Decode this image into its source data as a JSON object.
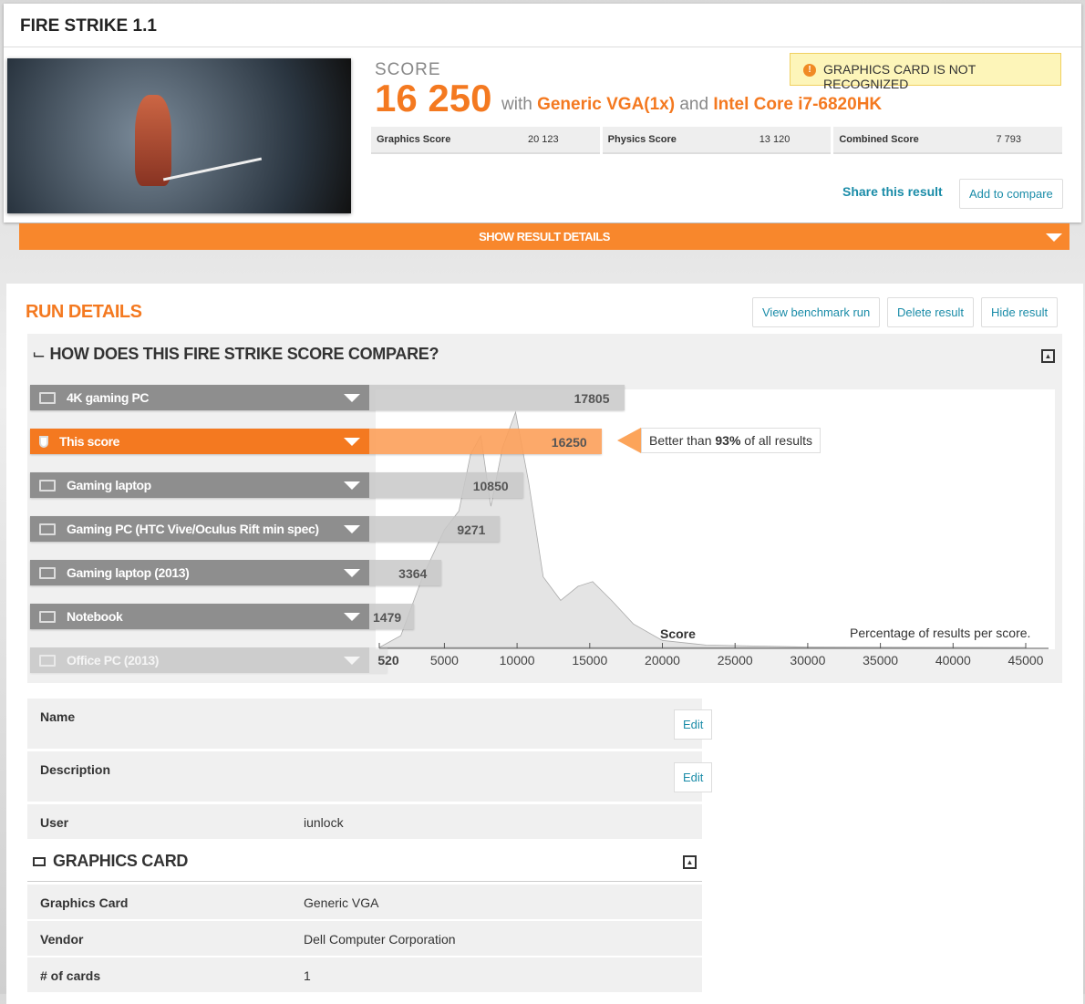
{
  "title": "FIRE STRIKE 1.1",
  "score": {
    "label": "SCORE",
    "value": "16 250",
    "with": "with",
    "gpu": "Generic VGA(1x)",
    "and": "and",
    "cpu": "Intel Core i7-6820HK"
  },
  "warning": "GRAPHICS CARD IS NOT RECOGNIZED",
  "subscores": [
    {
      "label": "Graphics Score",
      "value": "20 123"
    },
    {
      "label": "Physics Score",
      "value": "13 120"
    },
    {
      "label": "Combined Score",
      "value": "7 793"
    }
  ],
  "share": "Share this result",
  "add_compare": "Add to compare",
  "show_details": "SHOW RESULT DETAILS",
  "run_details": {
    "title": "RUN DETAILS",
    "buttons": [
      "View benchmark run",
      "Delete result",
      "Hide result"
    ]
  },
  "compare": {
    "title": "HOW DOES THIS FIRE STRIKE SCORE COMPARE?",
    "better_pre": "Better than ",
    "better_pct": "93%",
    "better_post": " of all results"
  },
  "chart_data": {
    "type": "area",
    "xlabel": "Score",
    "ylabel": "Percentage of results per score.",
    "xlim": [
      520,
      46000
    ],
    "ticks": [
      "520",
      "5000",
      "10000",
      "15000",
      "20000",
      "25000",
      "30000",
      "35000",
      "40000",
      "45000"
    ],
    "tick_values": [
      520,
      5000,
      10000,
      15000,
      20000,
      25000,
      30000,
      35000,
      40000,
      45000
    ],
    "references": [
      {
        "name": "4K gaming PC",
        "score": 17805,
        "icon": "desktop-icon"
      },
      {
        "name": "This score",
        "score": 16250,
        "icon": "trophy-icon",
        "highlight": true
      },
      {
        "name": "Gaming laptop",
        "score": 10850,
        "icon": "laptop-icon"
      },
      {
        "name": "Gaming PC (HTC Vive/Oculus Rift min spec)",
        "score": 9271,
        "icon": "desktop-icon"
      },
      {
        "name": "Gaming laptop (2013)",
        "score": 3364,
        "icon": "laptop-icon"
      },
      {
        "name": "Notebook",
        "score": 1479,
        "icon": "laptop-icon"
      },
      {
        "name": "Office PC (2013)",
        "score": 520,
        "icon": "desktop-icon",
        "faded": true
      }
    ],
    "distribution": {
      "x": [
        520,
        2000,
        3500,
        5000,
        6000,
        6800,
        7500,
        8200,
        9000,
        9900,
        10800,
        11800,
        13000,
        14200,
        15200,
        16500,
        18000,
        20000,
        23000,
        30000,
        45000
      ],
      "y": [
        0,
        0.05,
        0.3,
        0.5,
        0.58,
        0.82,
        0.9,
        0.6,
        0.85,
        1.0,
        0.7,
        0.3,
        0.2,
        0.26,
        0.28,
        0.2,
        0.1,
        0.03,
        0.01,
        0.002,
        0
      ]
    }
  },
  "info": [
    {
      "k": "Name",
      "edit": "Edit"
    },
    {
      "k": "Description",
      "edit": "Edit"
    },
    {
      "k": "User",
      "v": "iunlock"
    }
  ],
  "graphics_card": {
    "title": "GRAPHICS CARD",
    "rows": [
      {
        "k": "Graphics Card",
        "v": "Generic VGA"
      },
      {
        "k": "Vendor",
        "v": "Dell Computer Corporation"
      },
      {
        "k": "# of cards",
        "v": "1"
      }
    ]
  },
  "colors": {
    "accent": "#f47920",
    "link": "#1a8ca8",
    "warning_bg": "#fdf5b9"
  }
}
